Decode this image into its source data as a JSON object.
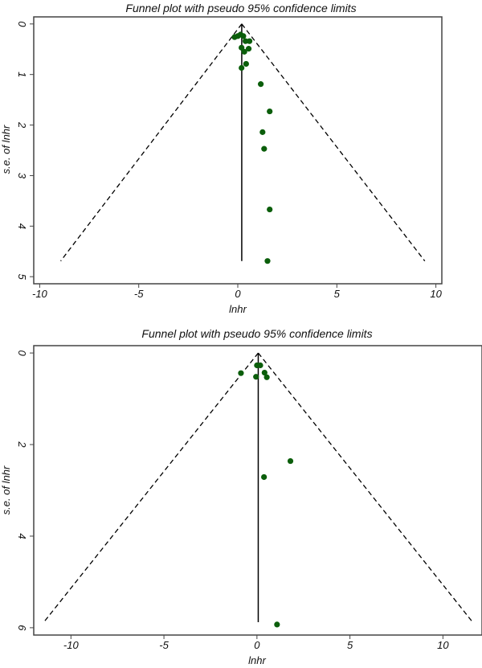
{
  "chart_data": [
    {
      "type": "scatter",
      "title": "Funnel plot with pseudo 95% confidence limits",
      "xlabel": "lnhr",
      "ylabel": "s.e. of lnhr",
      "xlim": [
        -10.3,
        10.3
      ],
      "ylim": [
        -0.14,
        5.14
      ],
      "y_reversed": true,
      "xticks": [
        -10,
        -5,
        0,
        5,
        10
      ],
      "yticks": [
        0,
        1,
        2,
        3,
        4,
        5
      ],
      "grid": false,
      "point_color": "#0b5e0b",
      "pooled_estimate": 0.2,
      "funnel": {
        "apex": [
          0.2,
          0
        ],
        "left_end": [
          -8.94,
          4.69
        ],
        "right_end": [
          9.44,
          4.69
        ]
      },
      "points": [
        {
          "x": -0.16,
          "y": 0.26
        },
        {
          "x": 0.0,
          "y": 0.24
        },
        {
          "x": 0.14,
          "y": 0.21
        },
        {
          "x": 0.28,
          "y": 0.24
        },
        {
          "x": 0.39,
          "y": 0.34
        },
        {
          "x": 0.59,
          "y": 0.34
        },
        {
          "x": 0.19,
          "y": 0.47
        },
        {
          "x": 0.55,
          "y": 0.49
        },
        {
          "x": 0.33,
          "y": 0.55
        },
        {
          "x": 0.42,
          "y": 0.79
        },
        {
          "x": 0.19,
          "y": 0.87
        },
        {
          "x": 1.16,
          "y": 1.19
        },
        {
          "x": 1.61,
          "y": 1.73
        },
        {
          "x": 1.25,
          "y": 2.14
        },
        {
          "x": 1.33,
          "y": 2.47
        },
        {
          "x": 1.61,
          "y": 3.67
        },
        {
          "x": 1.5,
          "y": 4.69
        }
      ]
    },
    {
      "type": "scatter",
      "title": "Funnel plot with pseudo 95% confidence limits",
      "xlabel": "lnhr",
      "ylabel": "s.e. of lnhr",
      "xlim": [
        -12.0,
        12.1
      ],
      "ylim": [
        -0.16,
        6.16
      ],
      "y_reversed": true,
      "xticks": [
        -10,
        -5,
        0,
        5,
        10
      ],
      "yticks": [
        0,
        2,
        4,
        6
      ],
      "grid": false,
      "point_color": "#0b5e0b",
      "pooled_estimate": 0.07,
      "funnel": {
        "apex": [
          0.07,
          0
        ],
        "left_end": [
          -11.46,
          5.88
        ],
        "right_end": [
          11.6,
          5.88
        ]
      },
      "points": [
        {
          "x": -0.86,
          "y": 0.44
        },
        {
          "x": 0.0,
          "y": 0.27
        },
        {
          "x": 0.18,
          "y": 0.27
        },
        {
          "x": -0.05,
          "y": 0.52
        },
        {
          "x": 0.41,
          "y": 0.43
        },
        {
          "x": 0.53,
          "y": 0.53
        },
        {
          "x": 1.8,
          "y": 2.36
        },
        {
          "x": 0.38,
          "y": 2.71
        },
        {
          "x": 1.08,
          "y": 5.93
        }
      ]
    }
  ]
}
